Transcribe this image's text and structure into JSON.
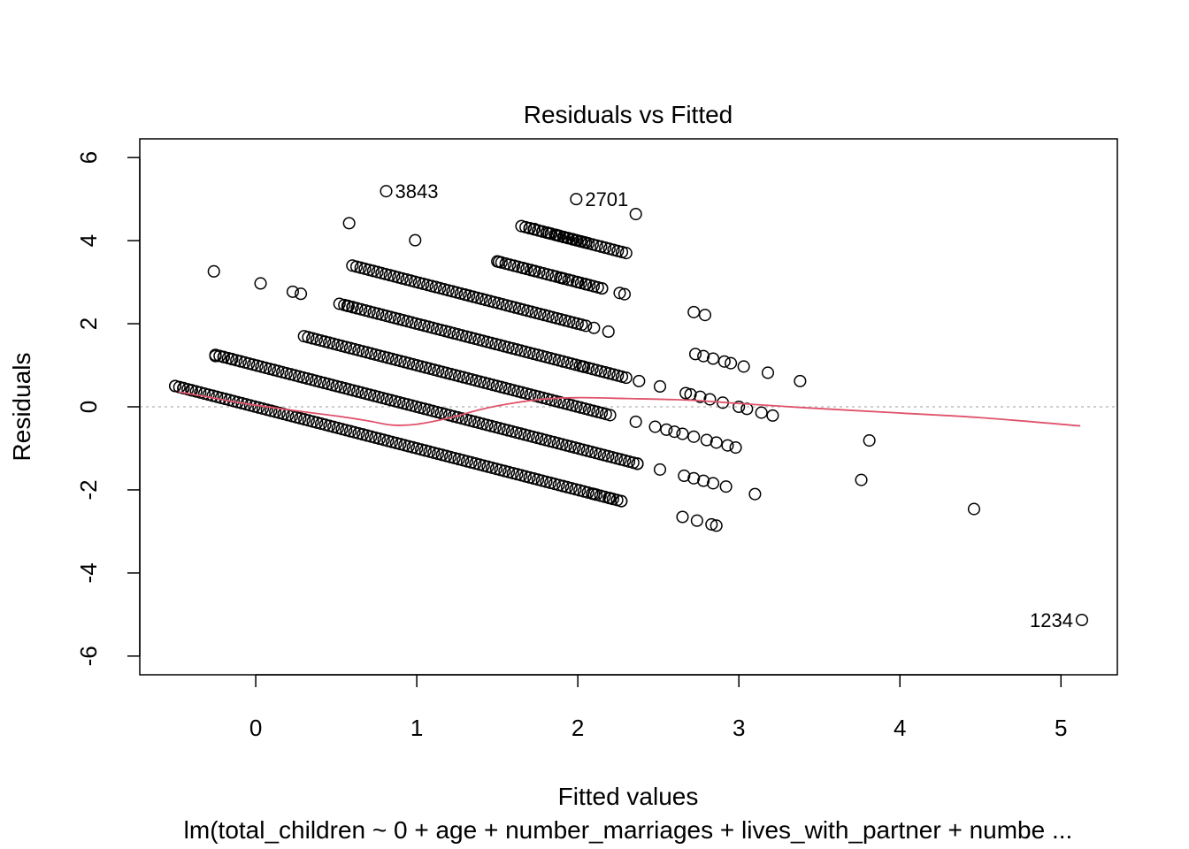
{
  "chart_data": {
    "type": "scatter",
    "title": "Residuals vs Fitted",
    "xlabel": "Fitted values",
    "ylabel": "Residuals",
    "caption": "lm(total_children ~ 0 + age + number_marriages + lives_with_partner + numbe ...",
    "xlim": [
      -0.72,
      5.35
    ],
    "ylim": [
      -6.45,
      6.45
    ],
    "x_ticks": [
      0,
      1,
      2,
      3,
      4,
      5
    ],
    "y_ticks": [
      -6,
      -4,
      -2,
      0,
      2,
      4,
      6
    ],
    "reference_line": {
      "y": 0,
      "style": "dotted",
      "color": "#b0b0b0"
    },
    "colors": {
      "points": "#000000",
      "smooth": "#df536b"
    },
    "bands": [
      {
        "x_start": -0.5,
        "x_end": 2.27,
        "residual_at_zero_fitted": 0.0
      },
      {
        "x_start": -0.25,
        "x_end": 2.37,
        "residual_at_zero_fitted": 1.0
      },
      {
        "x_start": 0.3,
        "x_end": 2.2,
        "residual_at_zero_fitted": 2.0
      },
      {
        "x_start": 0.55,
        "x_end": 2.3,
        "residual_at_zero_fitted": 3.0
      },
      {
        "x_start": 0.6,
        "x_end": 2.05,
        "residual_at_zero_fitted": 4.0
      },
      {
        "x_start": 1.5,
        "x_end": 2.15,
        "residual_at_zero_fitted": 5.0
      },
      {
        "x_start": 1.65,
        "x_end": 2.3,
        "residual_at_zero_fitted": 6.0
      },
      {
        "x_start": 1.7,
        "x_end": 2.05,
        "residual_at_zero_fitted": 6.0
      }
    ],
    "points": [
      [
        -0.5,
        0.5
      ],
      [
        -0.45,
        0.45
      ],
      [
        -0.4,
        0.4
      ],
      [
        -0.25,
        1.22
      ],
      [
        -0.2,
        1.2
      ],
      [
        -0.15,
        1.15
      ],
      [
        -0.26,
        3.26
      ],
      [
        0.03,
        2.97
      ],
      [
        0.23,
        2.77
      ],
      [
        0.28,
        2.72
      ],
      [
        0.52,
        2.48
      ],
      [
        0.57,
        2.43
      ],
      [
        0.6,
        2.4
      ],
      [
        0.58,
        4.42
      ],
      [
        0.99,
        4.01
      ],
      [
        0.81,
        5.19
      ],
      [
        1.99,
        5.0
      ],
      [
        2.36,
        4.64
      ],
      [
        1.73,
        4.28
      ],
      [
        1.82,
        4.18
      ],
      [
        1.87,
        4.13
      ],
      [
        1.97,
        4.03
      ],
      [
        1.51,
        3.49
      ],
      [
        1.66,
        3.34
      ],
      [
        1.73,
        3.27
      ],
      [
        1.9,
        3.1
      ],
      [
        2.0,
        3.0
      ],
      [
        2.05,
        2.95
      ],
      [
        2.15,
        2.85
      ],
      [
        2.26,
        2.74
      ],
      [
        2.29,
        2.71
      ],
      [
        1.3,
        2.7
      ],
      [
        1.35,
        2.65
      ],
      [
        2.19,
        1.81
      ],
      [
        2.1,
        1.9
      ],
      [
        2.03,
        0.97
      ],
      [
        2.36,
        -0.36
      ],
      [
        2.37,
        -1.37
      ],
      [
        2.37,
        -1.37
      ],
      [
        2.27,
        -2.27
      ],
      [
        2.2,
        -2.2
      ],
      [
        2.1,
        -2.1
      ],
      [
        2.38,
        0.62
      ],
      [
        2.51,
        0.49
      ],
      [
        2.48,
        -0.48
      ],
      [
        2.55,
        -0.55
      ],
      [
        2.51,
        -1.51
      ],
      [
        2.72,
        2.28
      ],
      [
        2.79,
        2.21
      ],
      [
        2.73,
        1.27
      ],
      [
        2.78,
        1.22
      ],
      [
        2.84,
        1.16
      ],
      [
        2.91,
        1.09
      ],
      [
        2.95,
        1.05
      ],
      [
        3.03,
        0.97
      ],
      [
        3.18,
        0.82
      ],
      [
        3.38,
        0.62
      ],
      [
        2.67,
        0.33
      ],
      [
        2.7,
        0.3
      ],
      [
        2.76,
        0.24
      ],
      [
        2.82,
        0.18
      ],
      [
        2.9,
        0.1
      ],
      [
        3.0,
        0.0
      ],
      [
        3.05,
        -0.05
      ],
      [
        3.14,
        -0.14
      ],
      [
        3.21,
        -0.21
      ],
      [
        2.6,
        -0.6
      ],
      [
        2.65,
        -0.65
      ],
      [
        2.72,
        -0.72
      ],
      [
        2.8,
        -0.8
      ],
      [
        2.86,
        -0.86
      ],
      [
        2.93,
        -0.93
      ],
      [
        2.98,
        -0.98
      ],
      [
        2.66,
        -1.66
      ],
      [
        2.72,
        -1.72
      ],
      [
        2.78,
        -1.78
      ],
      [
        2.84,
        -1.84
      ],
      [
        2.92,
        -1.92
      ],
      [
        3.1,
        -2.1
      ],
      [
        2.65,
        -2.65
      ],
      [
        2.74,
        -2.74
      ],
      [
        2.83,
        -2.83
      ],
      [
        2.86,
        -2.86
      ],
      [
        3.76,
        -1.76
      ],
      [
        3.81,
        -0.81
      ],
      [
        4.46,
        -2.46
      ],
      [
        5.13,
        -5.13
      ]
    ],
    "labeled_points": [
      {
        "label": "3843",
        "x": 0.81,
        "y": 5.19,
        "anchor": "right"
      },
      {
        "label": "2701",
        "x": 1.99,
        "y": 5.0,
        "anchor": "right"
      },
      {
        "label": "1234",
        "x": 5.13,
        "y": -5.13,
        "anchor": "left"
      }
    ],
    "smooth_line": [
      [
        -0.48,
        0.36
      ],
      [
        -0.3,
        0.24
      ],
      [
        -0.1,
        0.1
      ],
      [
        0.2,
        -0.07
      ],
      [
        0.5,
        -0.22
      ],
      [
        0.7,
        -0.34
      ],
      [
        0.85,
        -0.44
      ],
      [
        1.0,
        -0.42
      ],
      [
        1.2,
        -0.27
      ],
      [
        1.4,
        -0.06
      ],
      [
        1.6,
        0.09
      ],
      [
        1.8,
        0.19
      ],
      [
        2.0,
        0.22
      ],
      [
        2.3,
        0.2
      ],
      [
        2.7,
        0.16
      ],
      [
        3.0,
        0.08
      ],
      [
        3.4,
        -0.02
      ],
      [
        4.0,
        -0.15
      ],
      [
        4.5,
        -0.26
      ],
      [
        5.12,
        -0.46
      ]
    ]
  }
}
